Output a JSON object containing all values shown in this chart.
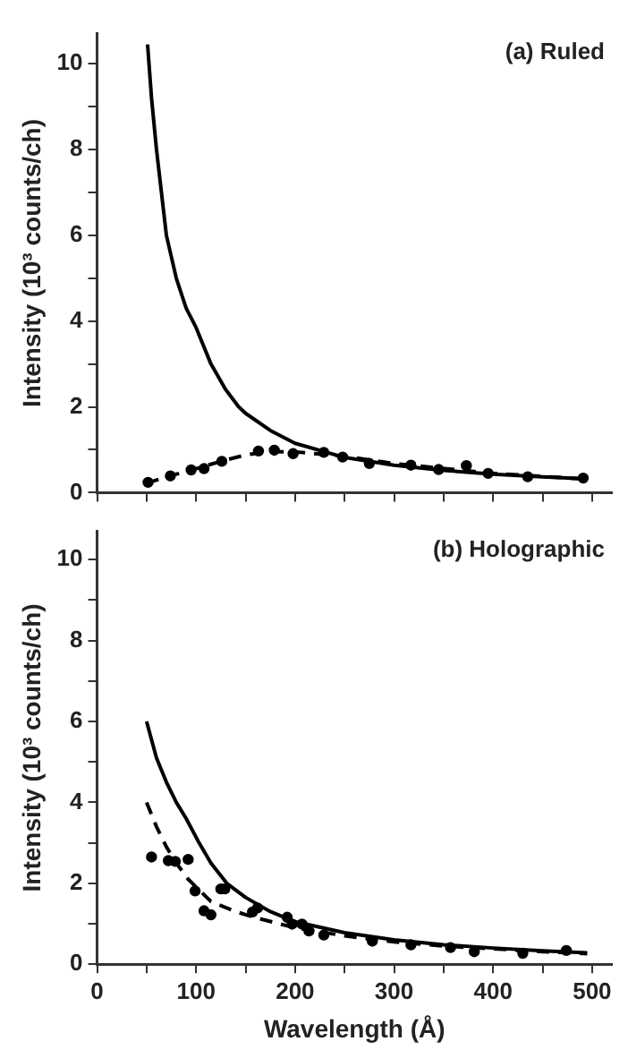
{
  "chart_data": [
    {
      "type": "scatter",
      "ylabel": "Intensity (10³ counts/ch)",
      "annotations": [
        "(a) Ruled"
      ],
      "xlim": [
        0,
        520
      ],
      "ylim": [
        0,
        10.7
      ],
      "xticks": [
        {
          "value": 0,
          "label": null
        },
        {
          "value": 50,
          "label": null
        },
        {
          "value": 100,
          "label": null
        },
        {
          "value": 150,
          "label": null
        },
        {
          "value": 200,
          "label": null
        },
        {
          "value": 250,
          "label": null
        },
        {
          "value": 300,
          "label": null
        },
        {
          "value": 350,
          "label": null
        },
        {
          "value": 400,
          "label": null
        },
        {
          "value": 450,
          "label": null
        },
        {
          "value": 500,
          "label": null
        }
      ],
      "yticks": [
        0,
        {
          "value": 1,
          "label": null
        },
        2,
        {
          "value": 3,
          "label": null
        },
        4,
        {
          "value": 5,
          "label": null
        },
        6,
        {
          "value": 7,
          "label": null
        },
        8,
        {
          "value": 9,
          "label": null
        },
        10
      ],
      "tick_labels": "y",
      "grid": false,
      "legend": false,
      "series": [
        {
          "type": "line",
          "color": "#000000",
          "line_style": "solid",
          "marker": "none",
          "x": [
            51,
            55,
            60,
            65,
            70,
            80,
            90,
            100,
            115,
            130,
            143,
            150,
            175,
            200,
            250,
            300,
            350,
            400,
            450,
            495
          ],
          "values": [
            10.45,
            9.2,
            8.0,
            7.0,
            6.0,
            5.0,
            4.3,
            3.85,
            3.0,
            2.4,
            2.0,
            1.85,
            1.45,
            1.15,
            0.82,
            0.64,
            0.52,
            0.43,
            0.37,
            0.32
          ]
        },
        {
          "type": "line",
          "color": "#000000",
          "line_style": "dashed",
          "marker": "none",
          "x": [
            50,
            75,
            100,
            125,
            150,
            175,
            200,
            250,
            300,
            400,
            490
          ],
          "values": [
            0.22,
            0.4,
            0.56,
            0.73,
            0.88,
            0.96,
            0.95,
            0.85,
            0.68,
            0.45,
            0.32
          ]
        },
        {
          "type": "scatter",
          "color": "#000000",
          "marker": "circle",
          "x": [
            51.5,
            74,
            95,
            108,
            126,
            163,
            179,
            198,
            229,
            248,
            275,
            317,
            345,
            373,
            395,
            435,
            491
          ],
          "values": [
            0.24,
            0.39,
            0.53,
            0.56,
            0.73,
            0.97,
            0.99,
            0.91,
            0.94,
            0.83,
            0.68,
            0.64,
            0.54,
            0.63,
            0.45,
            0.37,
            0.34
          ]
        }
      ]
    },
    {
      "type": "scatter",
      "xlabel": "Wavelength (Å)",
      "ylabel": "Intensity (10³ counts/ch)",
      "annotations": [
        "(b) Holographic"
      ],
      "xlim": [
        0,
        520
      ],
      "ylim": [
        0,
        10.7
      ],
      "xticks": [
        0,
        {
          "value": 50,
          "label": null
        },
        100,
        {
          "value": 150,
          "label": null
        },
        200,
        {
          "value": 250,
          "label": null
        },
        300,
        {
          "value": 350,
          "label": null
        },
        400,
        {
          "value": 450,
          "label": null
        },
        500
      ],
      "yticks": [
        0,
        {
          "value": 1,
          "label": null
        },
        2,
        {
          "value": 3,
          "label": null
        },
        4,
        {
          "value": 5,
          "label": null
        },
        6,
        {
          "value": 7,
          "label": null
        },
        8,
        {
          "value": 9,
          "label": null
        },
        10
      ],
      "grid": false,
      "legend": false,
      "series": [
        {
          "type": "line",
          "color": "#000000",
          "line_style": "solid",
          "marker": "none",
          "x": [
            50,
            60,
            70,
            80,
            90,
            103,
            115,
            131,
            150,
            175,
            200,
            250,
            300,
            350,
            400,
            450,
            495
          ],
          "values": [
            6.0,
            5.1,
            4.5,
            4.0,
            3.6,
            3.0,
            2.5,
            2.0,
            1.65,
            1.3,
            1.05,
            0.78,
            0.6,
            0.48,
            0.4,
            0.33,
            0.28
          ]
        },
        {
          "type": "line",
          "color": "#000000",
          "line_style": "dashed",
          "marker": "none",
          "x": [
            50,
            60,
            70,
            80,
            92,
            115,
            140,
            160,
            200,
            250,
            300,
            350,
            400,
            450,
            495
          ],
          "values": [
            4.0,
            3.4,
            2.9,
            2.5,
            2.1,
            1.55,
            1.3,
            1.15,
            0.9,
            0.7,
            0.55,
            0.45,
            0.38,
            0.31,
            0.26
          ]
        },
        {
          "type": "scatter",
          "color": "#000000",
          "marker": "circle",
          "x": [
            55,
            72,
            79,
            92,
            99,
            108,
            115,
            125,
            129,
            157,
            162,
            192,
            197,
            207,
            214,
            229,
            278,
            317,
            357,
            381,
            430,
            474
          ],
          "values": [
            2.65,
            2.56,
            2.54,
            2.59,
            1.81,
            1.32,
            1.22,
            1.86,
            1.86,
            1.29,
            1.39,
            1.16,
            0.99,
            0.99,
            0.82,
            0.72,
            0.57,
            0.48,
            0.41,
            0.31,
            0.27,
            0.34
          ]
        }
      ]
    }
  ]
}
